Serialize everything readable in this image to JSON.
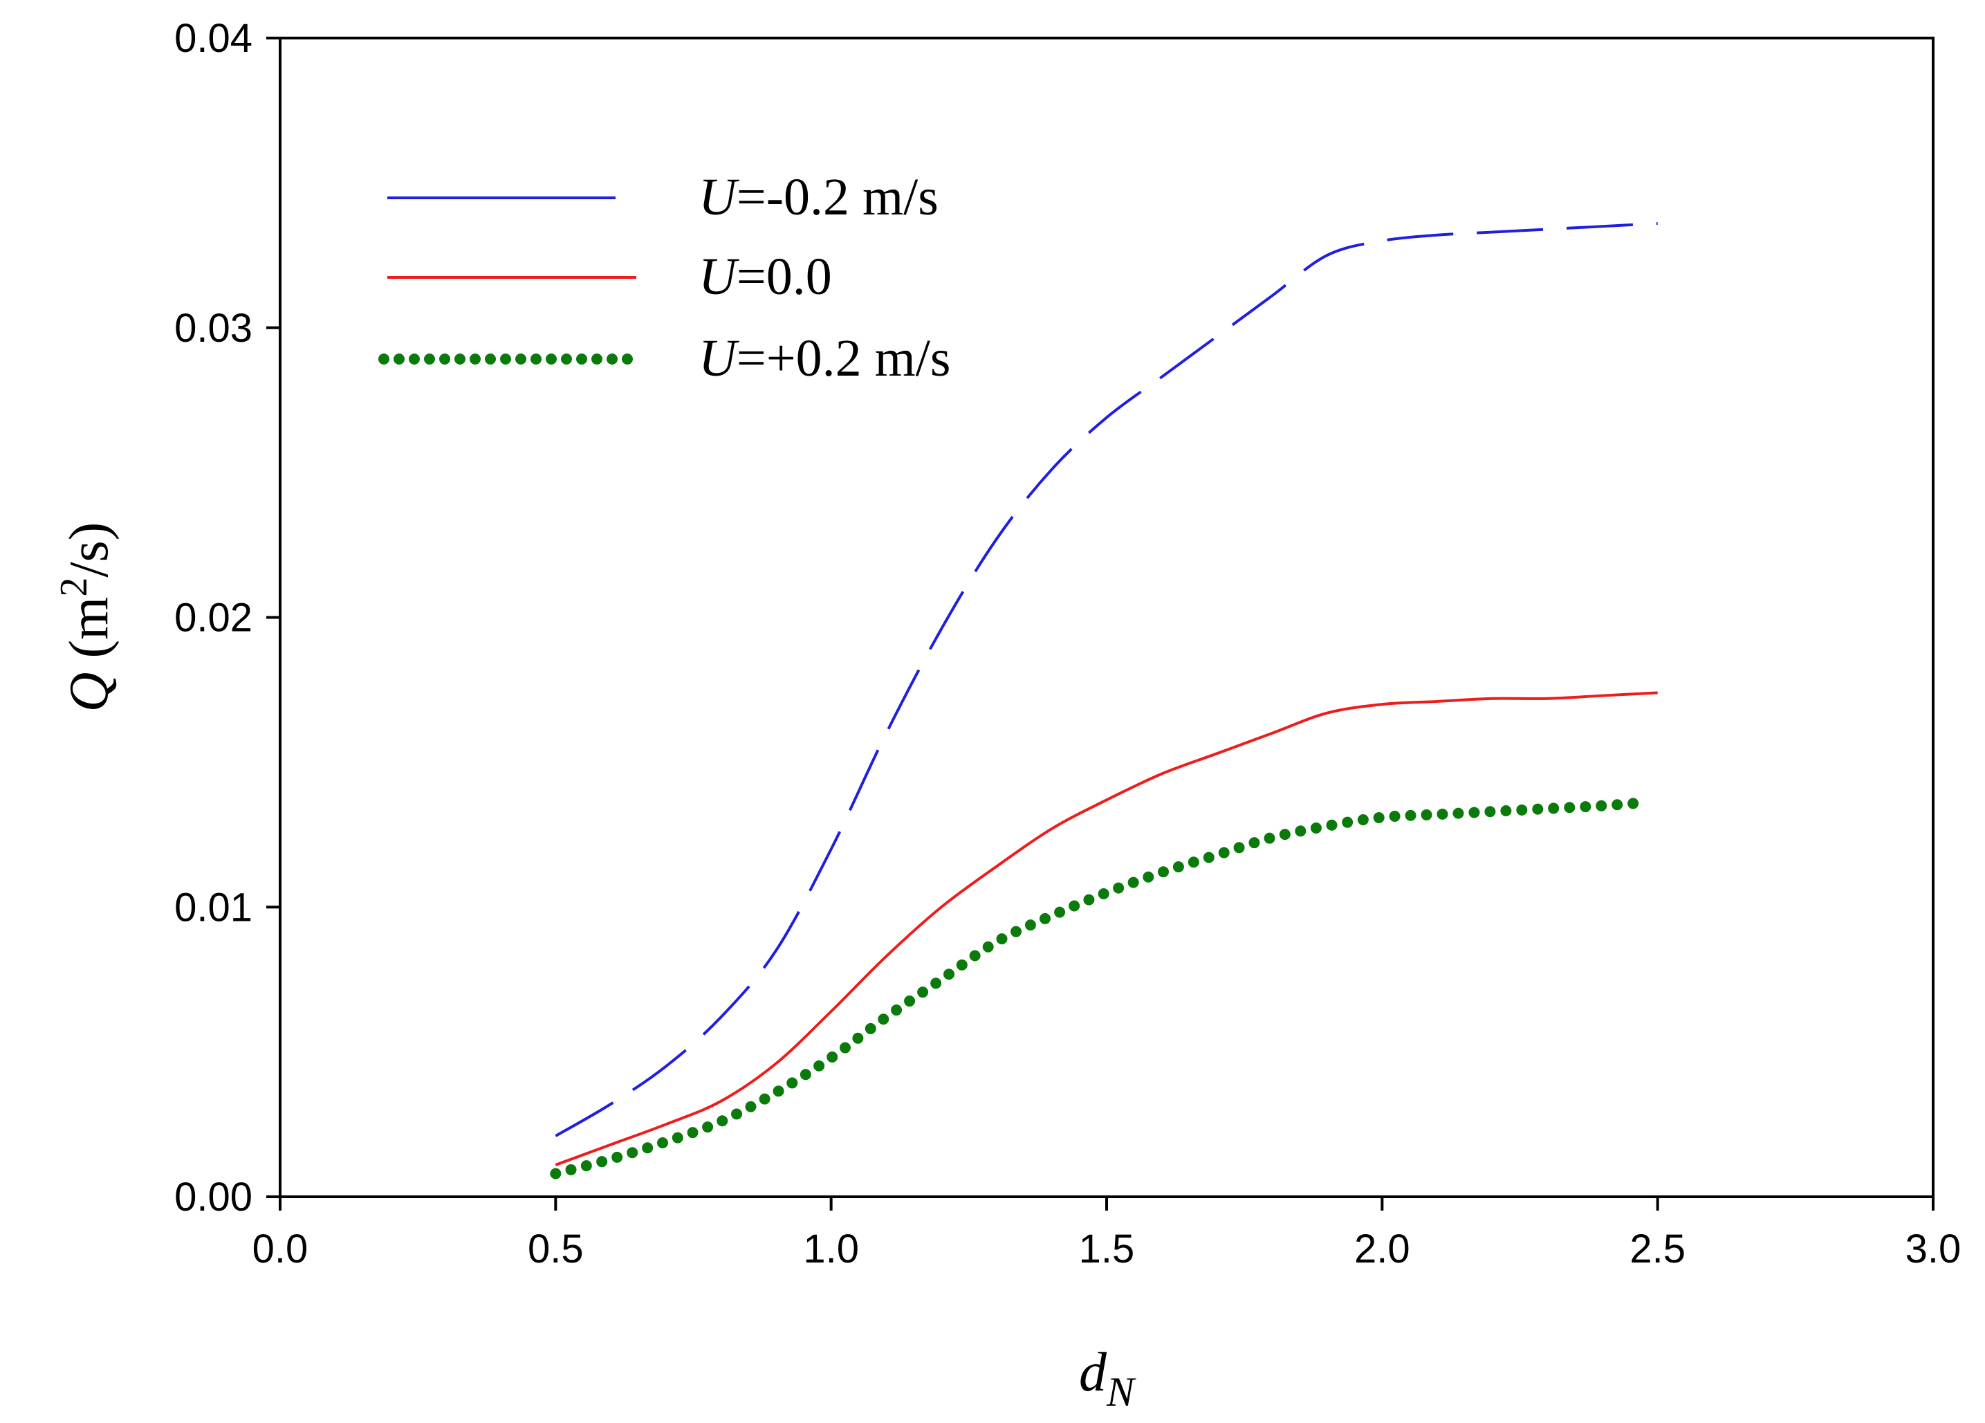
{
  "chart_data": {
    "type": "line",
    "title": "",
    "xlabel": {
      "main": "d",
      "sub": "N"
    },
    "ylabel": {
      "var": "Q",
      "unit_pre": " (m",
      "unit_sup": "2",
      "unit_post": "/s)"
    },
    "xlim": [
      0.0,
      3.0
    ],
    "ylim": [
      0.0,
      0.04
    ],
    "xticks": [
      0.0,
      0.5,
      1.0,
      1.5,
      2.0,
      2.5,
      3.0
    ],
    "xtick_labels": [
      "0.0",
      "0.5",
      "1.0",
      "1.5",
      "2.0",
      "2.5",
      "3.0"
    ],
    "yticks": [
      0.0,
      0.01,
      0.02,
      0.03,
      0.04
    ],
    "ytick_labels": [
      "0.00",
      "0.01",
      "0.02",
      "0.03",
      "0.04"
    ],
    "grid": false,
    "legend_position": "top-left",
    "series": [
      {
        "name": "U=-0.2 m/s",
        "label_var": "U",
        "label_rest": "=-0.2 m/s",
        "style": "dashed",
        "color": "#1f1fe0",
        "x": [
          0.5,
          0.6,
          0.7,
          0.8,
          0.9,
          1.0,
          1.1,
          1.2,
          1.3,
          1.4,
          1.5,
          1.6,
          1.7,
          1.8,
          1.9,
          2.0,
          2.1,
          2.2,
          2.3,
          2.4,
          2.5
        ],
        "y": [
          0.0021,
          0.0032,
          0.0045,
          0.0062,
          0.0085,
          0.012,
          0.016,
          0.0196,
          0.0227,
          0.0251,
          0.0269,
          0.0283,
          0.0297,
          0.0311,
          0.0325,
          0.033,
          0.0332,
          0.0333,
          0.0334,
          0.0335,
          0.0336
        ]
      },
      {
        "name": "U=0.0",
        "label_var": "U",
        "label_rest": "=0.0",
        "style": "solid",
        "color": "#ee1c1c",
        "x": [
          0.5,
          0.6,
          0.7,
          0.8,
          0.9,
          1.0,
          1.1,
          1.2,
          1.3,
          1.4,
          1.5,
          1.6,
          1.7,
          1.8,
          1.9,
          2.0,
          2.1,
          2.2,
          2.3,
          2.4,
          2.5
        ],
        "y": [
          0.0011,
          0.0018,
          0.0025,
          0.0033,
          0.0046,
          0.0064,
          0.0083,
          0.01,
          0.0114,
          0.0127,
          0.0137,
          0.0146,
          0.0153,
          0.016,
          0.0167,
          0.017,
          0.0171,
          0.0172,
          0.0172,
          0.0173,
          0.0174
        ]
      },
      {
        "name": "U=+0.2 m/s",
        "label_var": "U",
        "label_rest": "=+0.2 m/s",
        "style": "dotted",
        "color": "#0a7a0a",
        "x": [
          0.5,
          0.6,
          0.7,
          0.8,
          0.9,
          1.0,
          1.1,
          1.2,
          1.3,
          1.4,
          1.5,
          1.6,
          1.7,
          1.8,
          1.9,
          2.0,
          2.1,
          2.2,
          2.3,
          2.4,
          2.47
        ],
        "y": [
          0.0008,
          0.0013,
          0.0019,
          0.0026,
          0.0036,
          0.0048,
          0.0062,
          0.0075,
          0.0088,
          0.0097,
          0.0105,
          0.0112,
          0.0118,
          0.0124,
          0.0128,
          0.0131,
          0.0132,
          0.0133,
          0.0134,
          0.0135,
          0.0136
        ]
      }
    ]
  }
}
